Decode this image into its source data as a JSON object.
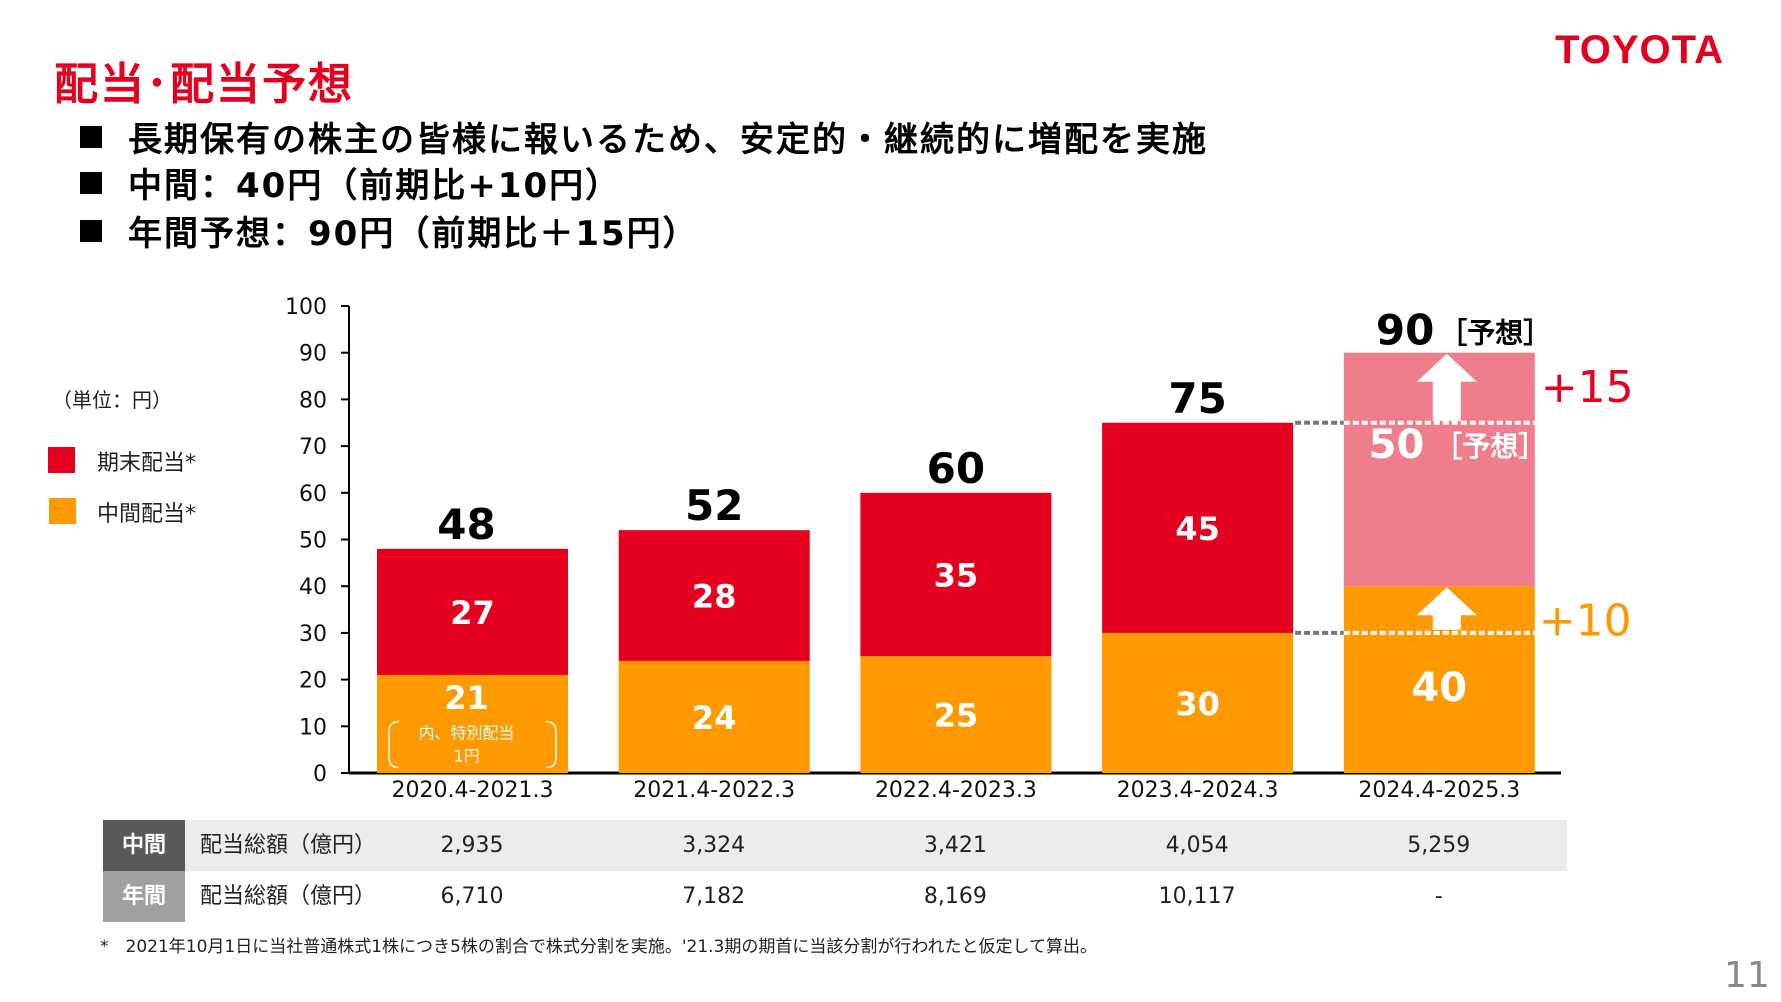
{
  "header": {
    "logo": "TOYOTA",
    "title": "配当･配当予想",
    "bullets": [
      "長期保有の株主の皆様に報いるため、安定的・継続的に増配を実施",
      "中間：40円（前期比+10円）",
      "年間予想：90円（前期比＋15円）"
    ]
  },
  "legend": {
    "unit": "（単位：円）",
    "items": [
      {
        "label": "期末配当*",
        "color": "#e60020"
      },
      {
        "label": "中間配当*",
        "color": "#ff9900"
      }
    ]
  },
  "chart_data": {
    "type": "bar",
    "stacked": true,
    "categories": [
      "2020.4-2021.3",
      "2021.4-2022.3",
      "2022.4-2023.3",
      "2023.4-2024.3",
      "2024.4-2025.3"
    ],
    "series": [
      {
        "name": "中間配当*",
        "values": [
          21,
          24,
          25,
          30,
          40
        ],
        "color": "#ff9900"
      },
      {
        "name": "期末配当*",
        "values": [
          27,
          28,
          35,
          45,
          50
        ],
        "color": "#e60020"
      }
    ],
    "totals": [
      48,
      52,
      60,
      75,
      90
    ],
    "forecast_index": 4,
    "forecast_color": "#f07d8c",
    "forecast_label": "［予想］",
    "increase_labels": {
      "final": "+15",
      "interim": "+10"
    },
    "special_note": "内、特別配当\n1円",
    "ylim": [
      0,
      100
    ],
    "yticks": [
      0,
      10,
      20,
      30,
      40,
      50,
      60,
      70,
      80,
      90,
      100
    ],
    "grid": false
  },
  "table": {
    "rows": [
      {
        "head": "中間",
        "label": "配当総額（億円）",
        "values": [
          "2,935",
          "3,324",
          "3,421",
          "4,054",
          "5,259"
        ]
      },
      {
        "head": "年間",
        "label": "配当総額（億円）",
        "values": [
          "6,710",
          "7,182",
          "8,169",
          "10,117",
          "-"
        ]
      }
    ]
  },
  "footnote": "*　2021年10月1日に当社普通株式1株につき5株の割合で株式分割を実施。'21.3期の期首に当該分割が行われたと仮定して算出。",
  "page_number": "11"
}
